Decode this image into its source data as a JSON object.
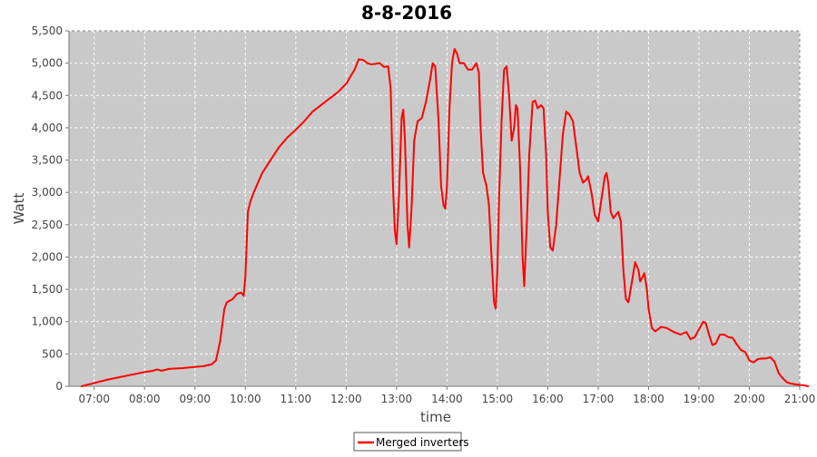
{
  "chart_data": {
    "type": "line",
    "title": "8-8-2016",
    "xlabel": "time",
    "ylabel": "Watt",
    "xlim": [
      "06:30",
      "21:00"
    ],
    "ylim": [
      0,
      5500
    ],
    "x_ticks": [
      "07:00",
      "08:00",
      "09:00",
      "10:00",
      "11:00",
      "12:00",
      "13:00",
      "14:00",
      "15:00",
      "16:00",
      "17:00",
      "18:00",
      "19:00",
      "20:00",
      "21:00"
    ],
    "y_ticks": [
      "0",
      "500",
      "1,000",
      "1,500",
      "2,000",
      "2,500",
      "3,000",
      "3,500",
      "4,000",
      "4,500",
      "5,000",
      "5,500"
    ],
    "grid": true,
    "legend_position": "bottom-center",
    "series": [
      {
        "name": "Merged inverters",
        "color": "#ff0000",
        "points": [
          [
            "06:45",
            0
          ],
          [
            "07:00",
            50
          ],
          [
            "07:15",
            100
          ],
          [
            "07:30",
            140
          ],
          [
            "07:45",
            180
          ],
          [
            "08:00",
            220
          ],
          [
            "08:10",
            240
          ],
          [
            "08:15",
            260
          ],
          [
            "08:20",
            240
          ],
          [
            "08:30",
            270
          ],
          [
            "08:45",
            280
          ],
          [
            "09:00",
            300
          ],
          [
            "09:10",
            310
          ],
          [
            "09:20",
            340
          ],
          [
            "09:25",
            400
          ],
          [
            "09:30",
            700
          ],
          [
            "09:35",
            1200
          ],
          [
            "09:38",
            1300
          ],
          [
            "09:45",
            1350
          ],
          [
            "09:50",
            1430
          ],
          [
            "09:55",
            1450
          ],
          [
            "09:58",
            1400
          ],
          [
            "10:00",
            1700
          ],
          [
            "10:03",
            2700
          ],
          [
            "10:06",
            2860
          ],
          [
            "10:10",
            3000
          ],
          [
            "10:15",
            3150
          ],
          [
            "10:20",
            3300
          ],
          [
            "10:30",
            3500
          ],
          [
            "10:40",
            3700
          ],
          [
            "10:50",
            3850
          ],
          [
            "11:00",
            3970
          ],
          [
            "11:10",
            4100
          ],
          [
            "11:20",
            4250
          ],
          [
            "11:30",
            4350
          ],
          [
            "11:40",
            4450
          ],
          [
            "11:50",
            4550
          ],
          [
            "12:00",
            4680
          ],
          [
            "12:10",
            4900
          ],
          [
            "12:15",
            5060
          ],
          [
            "12:20",
            5050
          ],
          [
            "12:25",
            5000
          ],
          [
            "12:30",
            4980
          ],
          [
            "12:40",
            5000
          ],
          [
            "12:45",
            4940
          ],
          [
            "12:50",
            4950
          ],
          [
            "12:53",
            4600
          ],
          [
            "12:56",
            3000
          ],
          [
            "12:58",
            2400
          ],
          [
            "13:00",
            2200
          ],
          [
            "13:03",
            3000
          ],
          [
            "13:06",
            4150
          ],
          [
            "13:08",
            4280
          ],
          [
            "13:10",
            3800
          ],
          [
            "13:13",
            2500
          ],
          [
            "13:15",
            2150
          ],
          [
            "13:18",
            2800
          ],
          [
            "13:21",
            3800
          ],
          [
            "13:25",
            4100
          ],
          [
            "13:30",
            4150
          ],
          [
            "13:35",
            4400
          ],
          [
            "13:40",
            4750
          ],
          [
            "13:43",
            5000
          ],
          [
            "13:46",
            4950
          ],
          [
            "13:50",
            4100
          ],
          [
            "13:53",
            3100
          ],
          [
            "13:56",
            2800
          ],
          [
            "13:58",
            2750
          ],
          [
            "14:00",
            3100
          ],
          [
            "14:03",
            4300
          ],
          [
            "14:06",
            5000
          ],
          [
            "14:09",
            5220
          ],
          [
            "14:12",
            5150
          ],
          [
            "14:15",
            5000
          ],
          [
            "14:20",
            5000
          ],
          [
            "14:25",
            4900
          ],
          [
            "14:30",
            4900
          ],
          [
            "14:35",
            5000
          ],
          [
            "14:38",
            4850
          ],
          [
            "14:40",
            4000
          ],
          [
            "14:43",
            3300
          ],
          [
            "14:47",
            3100
          ],
          [
            "14:50",
            2800
          ],
          [
            "14:53",
            2000
          ],
          [
            "14:56",
            1300
          ],
          [
            "14:58",
            1200
          ],
          [
            "15:00",
            1800
          ],
          [
            "15:02",
            2900
          ],
          [
            "15:05",
            4100
          ],
          [
            "15:08",
            4900
          ],
          [
            "15:11",
            4950
          ],
          [
            "15:14",
            4500
          ],
          [
            "15:17",
            3800
          ],
          [
            "15:20",
            4000
          ],
          [
            "15:22",
            4350
          ],
          [
            "15:24",
            4300
          ],
          [
            "15:27",
            3400
          ],
          [
            "15:30",
            2000
          ],
          [
            "15:32",
            1550
          ],
          [
            "15:35",
            2500
          ],
          [
            "15:38",
            3600
          ],
          [
            "15:42",
            4400
          ],
          [
            "15:45",
            4420
          ],
          [
            "15:48",
            4300
          ],
          [
            "15:52",
            4350
          ],
          [
            "15:55",
            4300
          ],
          [
            "15:58",
            3600
          ],
          [
            "16:00",
            2700
          ],
          [
            "16:03",
            2150
          ],
          [
            "16:06",
            2100
          ],
          [
            "16:10",
            2500
          ],
          [
            "16:14",
            3200
          ],
          [
            "16:18",
            3900
          ],
          [
            "16:22",
            4250
          ],
          [
            "16:26",
            4200
          ],
          [
            "16:30",
            4100
          ],
          [
            "16:34",
            3700
          ],
          [
            "16:38",
            3300
          ],
          [
            "16:42",
            3150
          ],
          [
            "16:46",
            3200
          ],
          [
            "16:48",
            3250
          ],
          [
            "16:52",
            3000
          ],
          [
            "16:56",
            2650
          ],
          [
            "17:00",
            2550
          ],
          [
            "17:04",
            2900
          ],
          [
            "17:08",
            3250
          ],
          [
            "17:10",
            3300
          ],
          [
            "17:12",
            3150
          ],
          [
            "17:15",
            2700
          ],
          [
            "17:18",
            2600
          ],
          [
            "17:21",
            2650
          ],
          [
            "17:24",
            2700
          ],
          [
            "17:27",
            2550
          ],
          [
            "17:30",
            1800
          ],
          [
            "17:33",
            1350
          ],
          [
            "17:36",
            1300
          ],
          [
            "17:40",
            1600
          ],
          [
            "17:44",
            1920
          ],
          [
            "17:48",
            1800
          ],
          [
            "17:50",
            1620
          ],
          [
            "17:55",
            1750
          ],
          [
            "17:58",
            1500
          ],
          [
            "18:00",
            1200
          ],
          [
            "18:04",
            900
          ],
          [
            "18:08",
            850
          ],
          [
            "18:15",
            920
          ],
          [
            "18:22",
            900
          ],
          [
            "18:30",
            840
          ],
          [
            "18:38",
            800
          ],
          [
            "18:45",
            840
          ],
          [
            "18:50",
            730
          ],
          [
            "18:55",
            760
          ],
          [
            "19:00",
            880
          ],
          [
            "19:05",
            1000
          ],
          [
            "19:08",
            980
          ],
          [
            "19:12",
            800
          ],
          [
            "19:16",
            640
          ],
          [
            "19:20",
            660
          ],
          [
            "19:25",
            800
          ],
          [
            "19:30",
            800
          ],
          [
            "19:35",
            760
          ],
          [
            "19:40",
            750
          ],
          [
            "19:45",
            650
          ],
          [
            "19:50",
            560
          ],
          [
            "19:55",
            530
          ],
          [
            "20:00",
            400
          ],
          [
            "20:05",
            370
          ],
          [
            "20:10",
            420
          ],
          [
            "20:15",
            430
          ],
          [
            "20:20",
            430
          ],
          [
            "20:25",
            450
          ],
          [
            "20:30",
            380
          ],
          [
            "20:35",
            200
          ],
          [
            "20:40",
            120
          ],
          [
            "20:45",
            60
          ],
          [
            "20:50",
            40
          ],
          [
            "20:55",
            30
          ],
          [
            "21:00",
            20
          ],
          [
            "21:05",
            15
          ],
          [
            "21:10",
            0
          ]
        ]
      }
    ]
  }
}
